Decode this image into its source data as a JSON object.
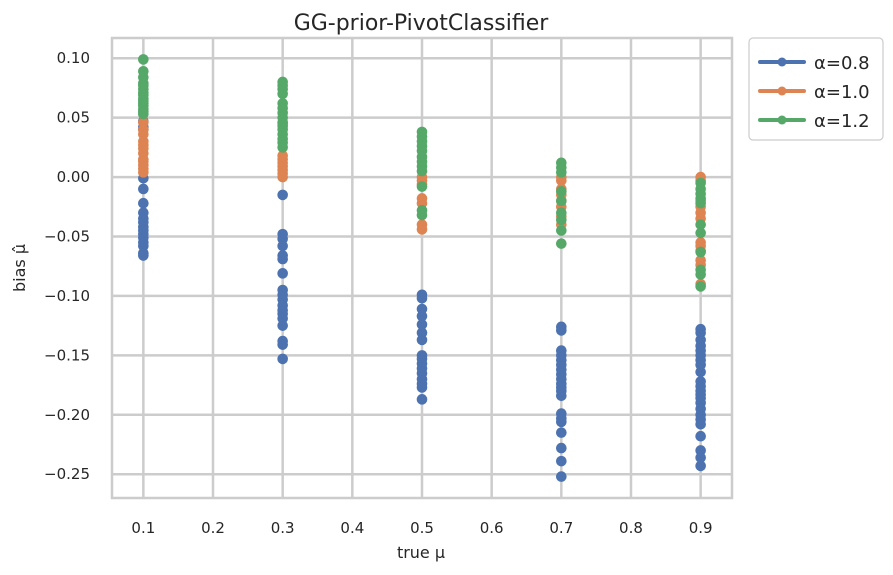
{
  "chart_data": {
    "type": "scatter",
    "title": "GG-prior-PivotClassifier",
    "xlabel": "true μ",
    "ylabel": "bias μ̂",
    "xlim": [
      0.055,
      0.945
    ],
    "ylim": [
      -0.27,
      0.117
    ],
    "xticks": [
      0.1,
      0.2,
      0.3,
      0.4,
      0.5,
      0.6,
      0.7,
      0.8,
      0.9
    ],
    "xtick_labels": [
      "0.1",
      "0.2",
      "0.3",
      "0.4",
      "0.5",
      "0.6",
      "0.7",
      "0.8",
      "0.9"
    ],
    "yticks": [
      0.1,
      0.05,
      0.0,
      -0.05,
      -0.1,
      -0.15,
      -0.2,
      -0.25
    ],
    "ytick_labels": [
      "0.10",
      "0.05",
      "0.00",
      "−0.05",
      "−0.10",
      "−0.15",
      "−0.20",
      "−0.25"
    ],
    "grid": true,
    "legend_position": "outside-top-right",
    "series": [
      {
        "name": "α=0.8",
        "color": "#4c72b0",
        "points": [
          [
            0.1,
            0.047
          ],
          [
            0.1,
            0.042
          ],
          [
            0.1,
            0.04
          ],
          [
            0.1,
            -0.001
          ],
          [
            0.1,
            -0.01
          ],
          [
            0.1,
            -0.022
          ],
          [
            0.1,
            -0.03
          ],
          [
            0.1,
            -0.035
          ],
          [
            0.1,
            -0.038
          ],
          [
            0.1,
            -0.042
          ],
          [
            0.1,
            -0.045
          ],
          [
            0.1,
            -0.048
          ],
          [
            0.1,
            -0.051
          ],
          [
            0.1,
            -0.055
          ],
          [
            0.1,
            -0.058
          ],
          [
            0.1,
            -0.064
          ],
          [
            0.1,
            -0.066
          ],
          [
            0.3,
            -0.015
          ],
          [
            0.3,
            -0.048
          ],
          [
            0.3,
            -0.052
          ],
          [
            0.3,
            -0.058
          ],
          [
            0.3,
            -0.066
          ],
          [
            0.3,
            -0.069
          ],
          [
            0.3,
            -0.081
          ],
          [
            0.3,
            -0.095
          ],
          [
            0.3,
            -0.099
          ],
          [
            0.3,
            -0.103
          ],
          [
            0.3,
            -0.108
          ],
          [
            0.3,
            -0.112
          ],
          [
            0.3,
            -0.115
          ],
          [
            0.3,
            -0.119
          ],
          [
            0.3,
            -0.125
          ],
          [
            0.3,
            -0.138
          ],
          [
            0.3,
            -0.141
          ],
          [
            0.3,
            -0.153
          ],
          [
            0.5,
            -0.099
          ],
          [
            0.5,
            -0.102
          ],
          [
            0.5,
            -0.111
          ],
          [
            0.5,
            -0.117
          ],
          [
            0.5,
            -0.124
          ],
          [
            0.5,
            -0.131
          ],
          [
            0.5,
            -0.137
          ],
          [
            0.5,
            -0.15
          ],
          [
            0.5,
            -0.153
          ],
          [
            0.5,
            -0.157
          ],
          [
            0.5,
            -0.161
          ],
          [
            0.5,
            -0.165
          ],
          [
            0.5,
            -0.17
          ],
          [
            0.5,
            -0.174
          ],
          [
            0.5,
            -0.177
          ],
          [
            0.5,
            -0.187
          ],
          [
            0.7,
            -0.126
          ],
          [
            0.7,
            -0.129
          ],
          [
            0.7,
            -0.146
          ],
          [
            0.7,
            -0.15
          ],
          [
            0.7,
            -0.154
          ],
          [
            0.7,
            -0.158
          ],
          [
            0.7,
            -0.162
          ],
          [
            0.7,
            -0.166
          ],
          [
            0.7,
            -0.17
          ],
          [
            0.7,
            -0.174
          ],
          [
            0.7,
            -0.177
          ],
          [
            0.7,
            -0.18
          ],
          [
            0.7,
            -0.184
          ],
          [
            0.7,
            -0.199
          ],
          [
            0.7,
            -0.203
          ],
          [
            0.7,
            -0.206
          ],
          [
            0.7,
            -0.215
          ],
          [
            0.7,
            -0.228
          ],
          [
            0.7,
            -0.239
          ],
          [
            0.7,
            -0.252
          ],
          [
            0.9,
            -0.128
          ],
          [
            0.9,
            -0.131
          ],
          [
            0.9,
            -0.137
          ],
          [
            0.9,
            -0.142
          ],
          [
            0.9,
            -0.146
          ],
          [
            0.9,
            -0.15
          ],
          [
            0.9,
            -0.154
          ],
          [
            0.9,
            -0.158
          ],
          [
            0.9,
            -0.164
          ],
          [
            0.9,
            -0.172
          ],
          [
            0.9,
            -0.176
          ],
          [
            0.9,
            -0.18
          ],
          [
            0.9,
            -0.183
          ],
          [
            0.9,
            -0.186
          ],
          [
            0.9,
            -0.19
          ],
          [
            0.9,
            -0.195
          ],
          [
            0.9,
            -0.2
          ],
          [
            0.9,
            -0.204
          ],
          [
            0.9,
            -0.208
          ],
          [
            0.9,
            -0.218
          ],
          [
            0.9,
            -0.23
          ],
          [
            0.9,
            -0.236
          ],
          [
            0.9,
            -0.243
          ]
        ]
      },
      {
        "name": "α=1.0",
        "color": "#dd8452",
        "points": [
          [
            0.1,
            0.046
          ],
          [
            0.1,
            0.04
          ],
          [
            0.1,
            0.036
          ],
          [
            0.1,
            0.03
          ],
          [
            0.1,
            0.027
          ],
          [
            0.1,
            0.024
          ],
          [
            0.1,
            0.02
          ],
          [
            0.1,
            0.015
          ],
          [
            0.1,
            0.013
          ],
          [
            0.1,
            0.01
          ],
          [
            0.1,
            0.007
          ],
          [
            0.1,
            0.004
          ],
          [
            0.3,
            0.045
          ],
          [
            0.3,
            0.018
          ],
          [
            0.3,
            0.015
          ],
          [
            0.3,
            0.012
          ],
          [
            0.3,
            0.009
          ],
          [
            0.3,
            0.006
          ],
          [
            0.3,
            0.003
          ],
          [
            0.3,
            0.0
          ],
          [
            0.5,
            0.0
          ],
          [
            0.5,
            -0.003
          ],
          [
            0.5,
            -0.006
          ],
          [
            0.5,
            -0.018
          ],
          [
            0.5,
            -0.022
          ],
          [
            0.5,
            -0.04
          ],
          [
            0.5,
            -0.044
          ],
          [
            0.7,
            0.0
          ],
          [
            0.7,
            -0.003
          ],
          [
            0.7,
            -0.01
          ],
          [
            0.7,
            -0.015
          ],
          [
            0.7,
            -0.02
          ],
          [
            0.7,
            -0.025
          ],
          [
            0.7,
            -0.033
          ],
          [
            0.7,
            -0.04
          ],
          [
            0.9,
            0.0
          ],
          [
            0.9,
            -0.003
          ],
          [
            0.9,
            -0.02
          ],
          [
            0.9,
            -0.025
          ],
          [
            0.9,
            -0.03
          ],
          [
            0.9,
            -0.035
          ],
          [
            0.9,
            -0.055
          ],
          [
            0.9,
            -0.058
          ],
          [
            0.9,
            -0.062
          ],
          [
            0.9,
            -0.07
          ],
          [
            0.9,
            -0.074
          ],
          [
            0.9,
            -0.09
          ]
        ]
      },
      {
        "name": "α=1.2",
        "color": "#55a868",
        "points": [
          [
            0.1,
            0.099
          ],
          [
            0.1,
            0.089
          ],
          [
            0.1,
            0.084
          ],
          [
            0.1,
            0.079
          ],
          [
            0.1,
            0.077
          ],
          [
            0.1,
            0.074
          ],
          [
            0.1,
            0.071
          ],
          [
            0.1,
            0.069
          ],
          [
            0.1,
            0.066
          ],
          [
            0.1,
            0.064
          ],
          [
            0.1,
            0.062
          ],
          [
            0.1,
            0.06
          ],
          [
            0.1,
            0.057
          ],
          [
            0.1,
            0.055
          ],
          [
            0.1,
            0.053
          ],
          [
            0.3,
            0.08
          ],
          [
            0.3,
            0.077
          ],
          [
            0.3,
            0.074
          ],
          [
            0.3,
            0.07
          ],
          [
            0.3,
            0.062
          ],
          [
            0.3,
            0.058
          ],
          [
            0.3,
            0.054
          ],
          [
            0.3,
            0.05
          ],
          [
            0.3,
            0.046
          ],
          [
            0.3,
            0.043
          ],
          [
            0.3,
            0.04
          ],
          [
            0.3,
            0.036
          ],
          [
            0.3,
            0.032
          ],
          [
            0.3,
            0.029
          ],
          [
            0.3,
            0.025
          ],
          [
            0.5,
            0.038
          ],
          [
            0.5,
            0.034
          ],
          [
            0.5,
            0.03
          ],
          [
            0.5,
            0.026
          ],
          [
            0.5,
            0.022
          ],
          [
            0.5,
            0.017
          ],
          [
            0.5,
            0.013
          ],
          [
            0.5,
            0.009
          ],
          [
            0.5,
            0.005
          ],
          [
            0.5,
            -0.008
          ],
          [
            0.5,
            -0.028
          ],
          [
            0.5,
            -0.032
          ],
          [
            0.7,
            0.012
          ],
          [
            0.7,
            0.008
          ],
          [
            0.7,
            0.004
          ],
          [
            0.7,
            -0.012
          ],
          [
            0.7,
            -0.02
          ],
          [
            0.7,
            -0.03
          ],
          [
            0.7,
            -0.036
          ],
          [
            0.7,
            -0.045
          ],
          [
            0.7,
            -0.056
          ],
          [
            0.9,
            -0.005
          ],
          [
            0.9,
            -0.01
          ],
          [
            0.9,
            -0.014
          ],
          [
            0.9,
            -0.018
          ],
          [
            0.9,
            -0.022
          ],
          [
            0.9,
            -0.04
          ],
          [
            0.9,
            -0.047
          ],
          [
            0.9,
            -0.063
          ],
          [
            0.9,
            -0.078
          ],
          [
            0.9,
            -0.082
          ],
          [
            0.9,
            -0.092
          ]
        ]
      }
    ]
  }
}
